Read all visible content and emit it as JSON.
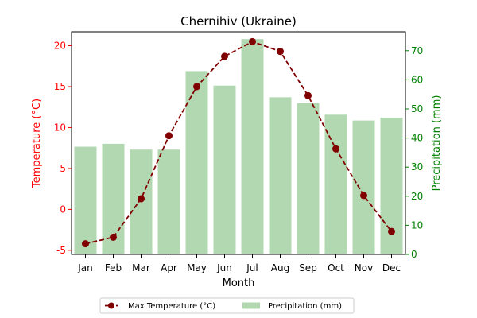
{
  "chart_data": {
    "type": "bar+line",
    "title": "Chernihiv (Ukraine)",
    "xlabel": "Month",
    "categories": [
      "Jan",
      "Feb",
      "Mar",
      "Apr",
      "May",
      "Jun",
      "Jul",
      "Aug",
      "Sep",
      "Oct",
      "Nov",
      "Dec"
    ],
    "left_axis": {
      "label": "Temperature (°C)",
      "color": "#ff0000",
      "ylim": [
        -5.5,
        21.7
      ],
      "ticks": [
        -5,
        0,
        5,
        10,
        15,
        20
      ]
    },
    "right_axis": {
      "label": "Precipitation (mm)",
      "color": "#008000",
      "ylim": [
        0,
        76.5
      ],
      "ticks": [
        0,
        10,
        20,
        30,
        40,
        50,
        60,
        70
      ]
    },
    "series": [
      {
        "name": "Max Temperature (°C)",
        "kind": "line",
        "axis": "left",
        "color": "#800000",
        "values": [
          -4.2,
          -3.4,
          1.3,
          9.0,
          15.0,
          18.7,
          20.5,
          19.3,
          13.9,
          7.4,
          1.7,
          -2.7
        ]
      },
      {
        "name": "Precipitation (mm)",
        "kind": "bar",
        "axis": "right",
        "color": "#b2d8b2",
        "values": [
          37,
          38,
          36,
          36,
          63,
          58,
          74,
          54,
          52,
          48,
          46,
          47
        ]
      }
    ],
    "legend": {
      "position": "bottom-center"
    },
    "grid": false
  }
}
